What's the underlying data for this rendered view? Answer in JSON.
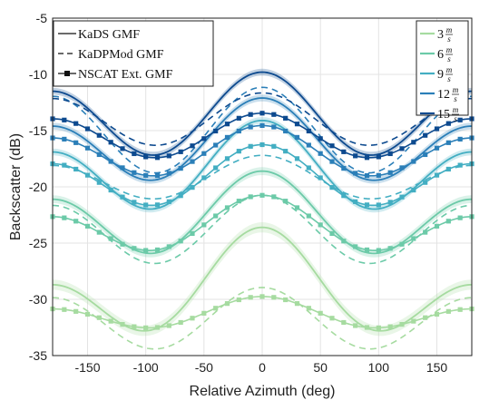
{
  "chart_data": {
    "type": "line",
    "title": "",
    "xlabel": "Relative Azimuth (deg)",
    "ylabel": "Backscatter (dB)",
    "xlim": [
      -180,
      180
    ],
    "ylim": [
      -35,
      -5
    ],
    "xticks": [
      -150,
      -100,
      -50,
      0,
      50,
      100,
      150
    ],
    "yticks": [
      -35,
      -30,
      -25,
      -20,
      -15,
      -10,
      -5
    ],
    "grid": true,
    "legend_models": {
      "placement": "top-left",
      "entries": [
        {
          "label": "KaDS GMF",
          "style": "solid"
        },
        {
          "label": "KaDPMod GMF",
          "style": "dashed"
        },
        {
          "label": "NSCAT Ext. GMF",
          "style": "square-markers"
        }
      ]
    },
    "legend_winds": {
      "placement": "top-right",
      "unit_num": "m",
      "unit_den": "s",
      "entries": [
        {
          "label": "3",
          "color": "#a6dba0"
        },
        {
          "label": "6",
          "color": "#6ccaa8"
        },
        {
          "label": "9",
          "color": "#43aec2"
        },
        {
          "label": "12",
          "color": "#2b7fb8"
        },
        {
          "label": "15",
          "color": "#0d4a8f"
        }
      ]
    },
    "series": [
      {
        "wind": 3,
        "model": "KaDS GMF",
        "color": "#a6dba0",
        "params": {
          "a0": -29.35,
          "a1": 2.55,
          "a2": 3.2
        },
        "band": 0.45
      },
      {
        "wind": 3,
        "model": "KaDPMod GMF",
        "color": "#a6dba0",
        "params": {
          "a0": -31.9,
          "a1": 0.45,
          "a2": 2.5
        }
      },
      {
        "wind": 3,
        "model": "NSCAT Ext. GMF",
        "color": "#a6dba0",
        "params": {
          "a0": -31.4,
          "a1": 0.55,
          "a2": 1.1
        }
      },
      {
        "wind": 6,
        "model": "KaDS GMF",
        "color": "#6ccaa8",
        "params": {
          "a0": -22.85,
          "a1": 1.25,
          "a2": 3.0
        },
        "band": 0.35
      },
      {
        "wind": 6,
        "model": "KaDPMod GMF",
        "color": "#6ccaa8",
        "params": {
          "a0": -24.0,
          "a1": 0.45,
          "a2": 2.8
        }
      },
      {
        "wind": 6,
        "model": "NSCAT Ext. GMF",
        "color": "#6ccaa8",
        "params": {
          "a0": -23.65,
          "a1": 0.95,
          "a2": 1.95
        }
      },
      {
        "wind": 9,
        "model": "KaDS GMF",
        "color": "#43aec2",
        "params": {
          "a0": -18.7,
          "a1": 1.4,
          "a2": 3.2
        },
        "band": 0.3
      },
      {
        "wind": 9,
        "model": "KaDPMod GMF",
        "color": "#43aec2",
        "params": {
          "a0": -19.35,
          "a1": 0.45,
          "a2": 1.7
        }
      },
      {
        "wind": 9,
        "model": "NSCAT Ext. GMF",
        "color": "#43aec2",
        "params": {
          "a0": -19.35,
          "a1": 0.85,
          "a2": 2.25
        }
      },
      {
        "wind": 12,
        "model": "KaDS GMF",
        "color": "#2b7fb8",
        "params": {
          "a0": -16.35,
          "a1": 1.25,
          "a2": 3.0
        },
        "band": 0.3
      },
      {
        "wind": 12,
        "model": "KaDPMod GMF",
        "color": "#2b7fb8",
        "params": {
          "a0": -15.15,
          "a1": 0.4,
          "a2": 3.6
        }
      },
      {
        "wind": 12,
        "model": "NSCAT Ext. GMF",
        "color": "#2b7fb8",
        "params": {
          "a0": -17.05,
          "a1": 0.55,
          "a2": 1.95
        }
      },
      {
        "wind": 15,
        "model": "KaDS GMF",
        "color": "#0d4a8f",
        "params": {
          "a0": -13.9,
          "a1": 0.85,
          "a2": 3.25
        },
        "band": 0.3
      },
      {
        "wind": 15,
        "model": "KaDPMod GMF",
        "color": "#0d4a8f",
        "params": {
          "a0": -14.1,
          "a1": 0.25,
          "a2": 2.2
        }
      },
      {
        "wind": 15,
        "model": "NSCAT Ext. GMF",
        "color": "#0d4a8f",
        "params": {
          "a0": -15.55,
          "a1": 0.25,
          "a2": 1.85
        }
      }
    ]
  }
}
